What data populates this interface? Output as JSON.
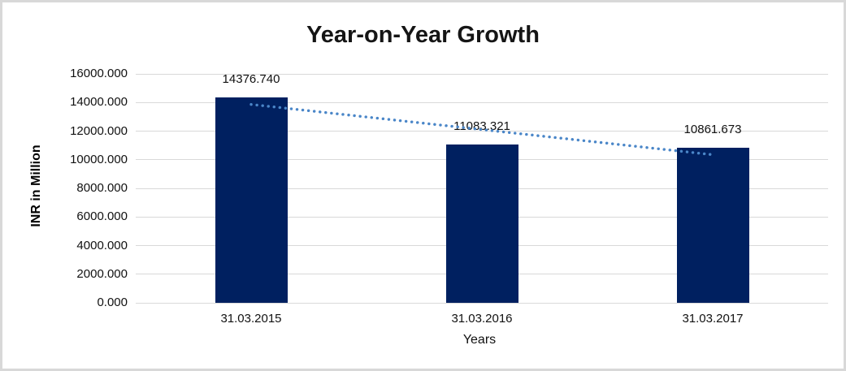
{
  "chart": {
    "colors": {
      "bar": "#002060",
      "trendline": "#4a86c8",
      "gridline": "#d9d9d9",
      "frame_border": "#d8d8d8",
      "text": "#111111"
    }
  },
  "chart_data": {
    "type": "bar",
    "title": "Year-on-Year Growth",
    "categories": [
      "31.03.2015",
      "31.03.2016",
      "31.03.2017"
    ],
    "values": [
      14376.74,
      11083.321,
      10861.673
    ],
    "data_labels": [
      "14376.740",
      "11083.321",
      "10861.673"
    ],
    "xlabel": "Years",
    "ylabel": "INR in Million",
    "ylim": [
      0,
      16000
    ],
    "yticks": [
      0,
      2000,
      4000,
      6000,
      8000,
      10000,
      12000,
      14000,
      16000
    ],
    "ytick_labels": [
      "0.000",
      "2000.000",
      "4000.000",
      "6000.000",
      "8000.000",
      "10000.000",
      "12000.000",
      "14000.000",
      "16000.000"
    ],
    "grid": true,
    "legend": false,
    "trendline": {
      "type": "linear",
      "style": "dotted"
    }
  }
}
